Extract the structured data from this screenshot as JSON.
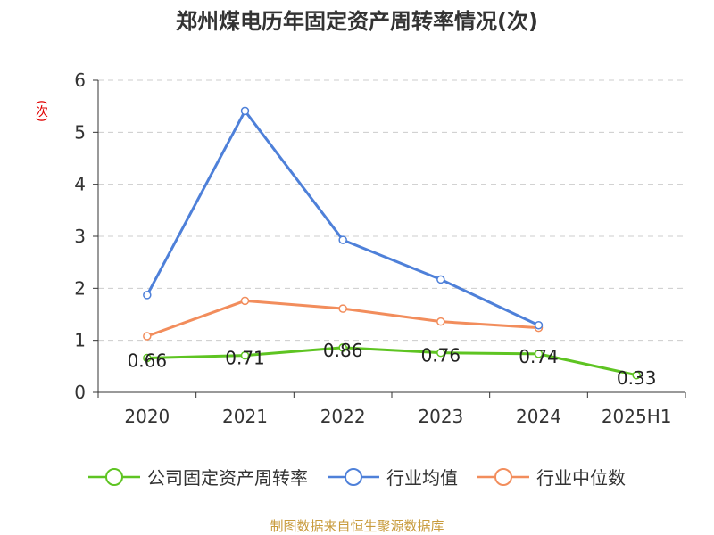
{
  "chart_data": {
    "type": "line",
    "title": "郑州煤电历年固定资产周转率情况(次)",
    "ylabel": "(次)",
    "categories": [
      "2020",
      "2021",
      "2022",
      "2023",
      "2024",
      "2025H1"
    ],
    "ylim": [
      0,
      6
    ],
    "yticks": [
      0,
      1,
      2,
      3,
      4,
      5,
      6
    ],
    "grid": true,
    "legend_position": "bottom",
    "series": [
      {
        "name": "公司固定资产周转率",
        "color": "#5ec422",
        "values": [
          0.66,
          0.71,
          0.86,
          0.76,
          0.74,
          0.33
        ],
        "labels": [
          "0.66",
          "0.71",
          "0.86",
          "0.76",
          "0.74",
          "0.33"
        ]
      },
      {
        "name": "行业均值",
        "color": "#4e80d9",
        "values": [
          1.87,
          5.41,
          2.93,
          2.17,
          1.29,
          null
        ]
      },
      {
        "name": "行业中位数",
        "color": "#f28d5c",
        "values": [
          1.08,
          1.76,
          1.61,
          1.36,
          1.24,
          null
        ]
      }
    ]
  },
  "source": "制图数据来自恒生聚源数据库"
}
